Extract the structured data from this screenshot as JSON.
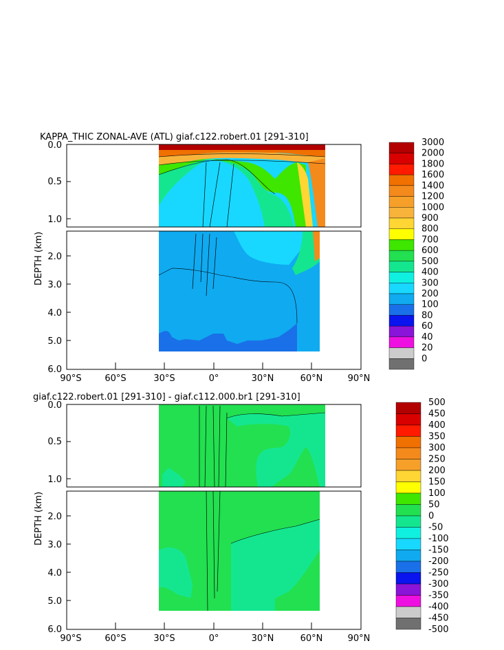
{
  "chart_data": [
    {
      "type": "heatmap",
      "title": "KAPPA_THIC ZONAL-AVE (ATL) giaf.c122.robert.01 [291-310]",
      "ylabel": "DEPTH (km)",
      "xlabel": "",
      "x_ticks": [
        "90°S",
        "60°S",
        "30°S",
        "0°",
        "30°N",
        "60°N",
        "90°N"
      ],
      "y_ticks_upper": [
        "0.0",
        "0.5",
        "1.0"
      ],
      "y_ticks_lower": [
        "2.0",
        "3.0",
        "4.0",
        "5.0",
        "6.0"
      ],
      "xlim": [
        -90,
        90
      ],
      "ylim": [
        6.0,
        0.0
      ],
      "colorbar_levels": [
        "3000",
        "2000",
        "1800",
        "1600",
        "1400",
        "1200",
        "1000",
        "900",
        "800",
        "700",
        "600",
        "500",
        "400",
        "300",
        "200",
        "100",
        "80",
        "60",
        "40",
        "20",
        "0"
      ],
      "colorbar_colors": [
        "#b30000",
        "#d90000",
        "#ff1a00",
        "#f07000",
        "#f48a1c",
        "#f6a02a",
        "#f8b33a",
        "#ffd633",
        "#ffff00",
        "#3ee600",
        "#22e050",
        "#14e690",
        "#10f0e0",
        "#18d8ff",
        "#10aaf0",
        "#1a70e8",
        "#0a14ee",
        "#8a14d8",
        "#ee10e0",
        "#cccccc",
        "#707070"
      ]
    },
    {
      "type": "heatmap",
      "title": "giaf.c122.robert.01 [291-310] - giaf.c112.000.br1 [291-310]",
      "ylabel": "DEPTH (km)",
      "xlabel": "",
      "x_ticks": [
        "90°S",
        "60°S",
        "30°S",
        "0°",
        "30°N",
        "60°N",
        "90°N"
      ],
      "y_ticks_upper": [
        "0.0",
        "0.5",
        "1.0"
      ],
      "y_ticks_lower": [
        "2.0",
        "3.0",
        "4.0",
        "5.0",
        "6.0"
      ],
      "xlim": [
        -90,
        90
      ],
      "ylim": [
        6.0,
        0.0
      ],
      "colorbar_levels": [
        "500",
        "450",
        "400",
        "350",
        "300",
        "250",
        "200",
        "150",
        "100",
        "50",
        "0",
        "-50",
        "-100",
        "-150",
        "-200",
        "-250",
        "-300",
        "-350",
        "-400",
        "-450",
        "-500"
      ],
      "colorbar_colors": [
        "#b30000",
        "#d90000",
        "#ff1a00",
        "#f07000",
        "#f48a1c",
        "#f6a02a",
        "#ffd633",
        "#ffff00",
        "#3ee600",
        "#22e050",
        "#14e690",
        "#10f0e0",
        "#18d8ff",
        "#10aaf0",
        "#1a70e8",
        "#0a14ee",
        "#8a14d8",
        "#ee10e0",
        "#cccccc",
        "#707070"
      ]
    }
  ]
}
